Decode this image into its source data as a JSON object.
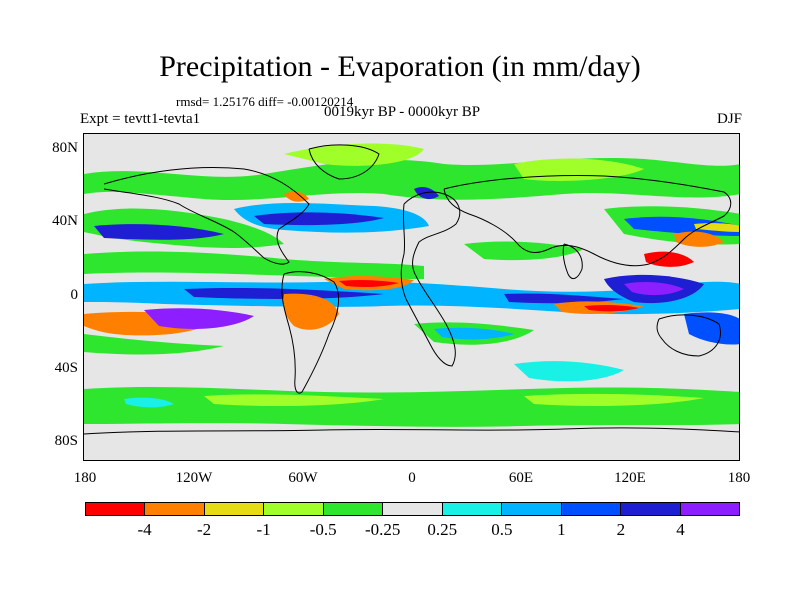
{
  "title": "Precipitation - Evaporation (in mm/day)",
  "stats": "rmsd= 1.25176 diff= -0.00120214",
  "expt": "Expt = tevtt1-tevta1",
  "period": "0019kyr BP - 0000kyr BP",
  "season": "DJF",
  "lat_ticks": [
    "80N",
    "40N",
    "0",
    "40S",
    "80S"
  ],
  "lon_ticks": [
    "180",
    "120W",
    "60W",
    "0",
    "60E",
    "120E",
    "180"
  ],
  "colorbar": {
    "colors": [
      "#ff0000",
      "#ff8000",
      "#e6dc14",
      "#a0ff28",
      "#2ee62e",
      "#e6e6e6",
      "#19f0e6",
      "#00b4ff",
      "#0050ff",
      "#1e1ed2",
      "#8c1eff"
    ],
    "labels": [
      "-4",
      "-2",
      "-1",
      "-0.5",
      "-0.25",
      "0.25",
      "0.5",
      "1",
      "2",
      "4"
    ]
  }
}
